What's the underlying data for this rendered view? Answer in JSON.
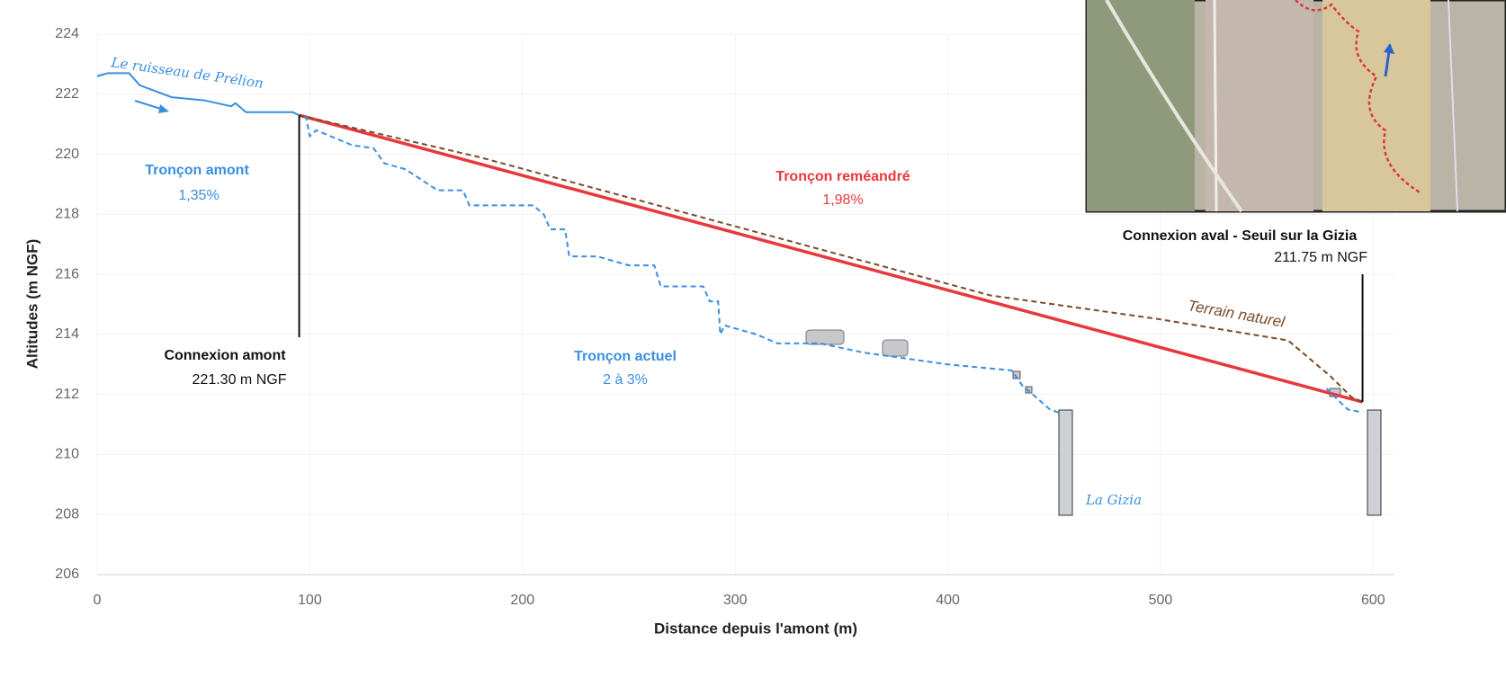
{
  "chart_data": {
    "type": "line",
    "xlabel": "Distance depuis l'amont (m)",
    "ylabel": "Altitudes (m NGF)",
    "xlim": [
      0,
      610
    ],
    "xticks": [
      0,
      100,
      200,
      300,
      400,
      500,
      600
    ],
    "ylim": [
      206,
      224
    ],
    "yticks": [
      206,
      208,
      210,
      212,
      214,
      216,
      218,
      220,
      222,
      224
    ],
    "grid": true,
    "series": [
      {
        "name": "Le ruisseau de Prélion",
        "color": "#3a8ee0",
        "style": "solid",
        "x": [
          0,
          5,
          15,
          20,
          35,
          50,
          63,
          65,
          70,
          80,
          92,
          95
        ],
        "values": [
          222.6,
          222.7,
          222.7,
          222.3,
          221.9,
          221.8,
          221.6,
          221.7,
          221.4,
          221.4,
          221.4,
          221.3
        ]
      },
      {
        "name": "Tronçon reméandré",
        "color": "#e8383d",
        "style": "solid",
        "x": [
          95,
          595
        ],
        "values": [
          221.3,
          211.75
        ]
      },
      {
        "name": "Terrain naturel",
        "color": "#7a4a2a",
        "style": "dashed",
        "x": [
          95,
          180,
          300,
          420,
          500,
          560,
          580,
          590,
          595
        ],
        "values": [
          221.3,
          219.9,
          217.6,
          215.3,
          214.5,
          213.8,
          212.6,
          211.9,
          211.75
        ]
      },
      {
        "name": "Tronçon actuel",
        "color": "#3b8fe0",
        "style": "dashed",
        "x": [
          98,
          100,
          103,
          120,
          130,
          135,
          145,
          160,
          172,
          175,
          205,
          210,
          213,
          220,
          222,
          235,
          250,
          262,
          265,
          285,
          288,
          292,
          293,
          295,
          310,
          320,
          340,
          360,
          400,
          430,
          435,
          440,
          448,
          452,
          500,
          578,
          588,
          595
        ],
        "values": [
          221.3,
          220.6,
          220.8,
          220.3,
          220.2,
          219.7,
          219.5,
          218.8,
          218.8,
          218.3,
          218.3,
          218.0,
          217.5,
          217.5,
          216.6,
          216.6,
          216.3,
          216.3,
          215.6,
          215.6,
          215.1,
          215.1,
          214.0,
          214.3,
          214.0,
          213.7,
          213.7,
          213.4,
          213.0,
          212.8,
          212.3,
          212.0,
          211.5,
          211.4,
          null,
          212.2,
          211.5,
          211.4
        ]
      }
    ],
    "annotations": [
      "Tronçon amont",
      "1,35%",
      "Connexion amont",
      "221.30 m NGF",
      "Tronçon actuel",
      "2 à 3%",
      "1,98%",
      "Connexion aval - Seuil sur la Gizia",
      "211.75 m NGF",
      "La Gizia"
    ]
  }
}
